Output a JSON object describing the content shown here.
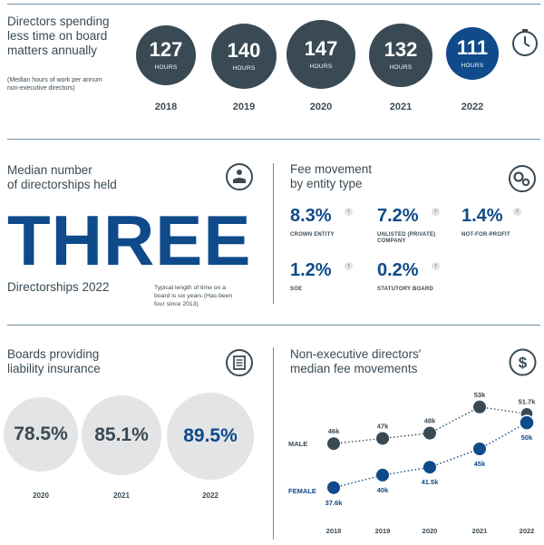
{
  "section1": {
    "title_line1": "Directors spending",
    "title_line2": "less time on board",
    "title_line3": "matters annually",
    "note_line1": "(Median hours of work per annum",
    "note_line2": "non-executive directors)",
    "items": [
      {
        "value": "127",
        "unit": "HOURS",
        "year": "2018"
      },
      {
        "value": "140",
        "unit": "HOURS",
        "year": "2019"
      },
      {
        "value": "147",
        "unit": "HOURS",
        "year": "2020"
      },
      {
        "value": "132",
        "unit": "HOURS",
        "year": "2021"
      },
      {
        "value": "111",
        "unit": "HOURS",
        "year": "2022"
      }
    ],
    "icon": "clock-icon"
  },
  "section2": {
    "title_line1": "Median number",
    "title_line2": "of directorships held",
    "big_value": "THREE",
    "caption": "Directorships 2022",
    "note_line1": "Typical length of time on a",
    "note_line2": "board is six years (Has been",
    "note_line3": "four since 2013)",
    "icon": "handshake-icon"
  },
  "section3": {
    "title_line1": "Fee movement",
    "title_line2": "by entity type",
    "icon": "gears-icon",
    "items": [
      {
        "value": "8.3%",
        "label_line1": "CROWN ENTITY",
        "label_line2": ""
      },
      {
        "value": "7.2%",
        "label_line1": "UNLISTED (PRIVATE)",
        "label_line2": "COMPANY"
      },
      {
        "value": "1.4%",
        "label_line1": "NOT-FOR-PROFIT",
        "label_line2": ""
      },
      {
        "value": "1.2%",
        "label_line1": "SOE",
        "label_line2": ""
      },
      {
        "value": "0.2%",
        "label_line1": "STATUTORY BOARD",
        "label_line2": ""
      }
    ],
    "arrow": "↑"
  },
  "section4": {
    "title_line1": "Boards providing",
    "title_line2": "liability insurance",
    "icon": "document-icon",
    "items": [
      {
        "value": "78.5%",
        "year": "2020"
      },
      {
        "value": "85.1%",
        "year": "2021"
      },
      {
        "value": "89.5%",
        "year": "2022"
      }
    ]
  },
  "section5": {
    "title_line1": "Non-executive directors'",
    "title_line2": "median fee movements",
    "icon": "dollar-icon",
    "chart_data": {
      "type": "line",
      "x": [
        "2018",
        "2019",
        "2020",
        "2021",
        "2022"
      ],
      "series": [
        {
          "name": "MALE",
          "values": [
            46,
            47,
            48,
            53,
            51.7
          ],
          "labels": [
            "46k",
            "47k",
            "48k",
            "53k",
            "51.7k"
          ],
          "color": "#3a4a55"
        },
        {
          "name": "FEMALE",
          "values": [
            37.6,
            40,
            41.5,
            45,
            50
          ],
          "labels": [
            "37.6k",
            "40k",
            "41.5k",
            "45k",
            "50k"
          ],
          "color": "#0f4a8a"
        }
      ]
    }
  }
}
